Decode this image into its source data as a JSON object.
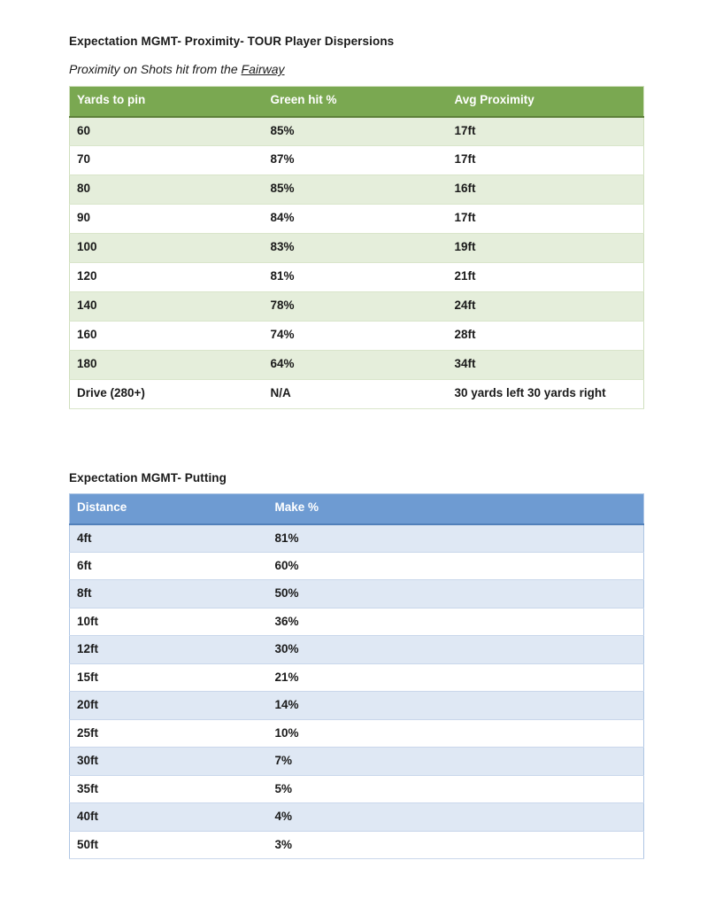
{
  "accent_colors": {
    "proximity_header_bg": "#7aa851",
    "proximity_band_bg": "#e5eedb",
    "putting_header_bg": "#6e9bd2",
    "putting_band_bg": "#dfe8f4"
  },
  "section1": {
    "title": "Expectation MGMT- Proximity- TOUR Player Dispersions",
    "subtitle_prefix": "Proximity on Shots hit from the ",
    "subtitle_underlined": "Fairway",
    "table": {
      "type": "table",
      "columns": [
        "Yards to pin",
        "Green hit %",
        "Avg Proximity"
      ],
      "rows": [
        [
          "60",
          "85%",
          "17ft"
        ],
        [
          "70",
          "87%",
          "17ft"
        ],
        [
          "80",
          "85%",
          "16ft"
        ],
        [
          "90",
          "84%",
          "17ft"
        ],
        [
          "100",
          "83%",
          "19ft"
        ],
        [
          "120",
          "81%",
          "21ft"
        ],
        [
          "140",
          "78%",
          "24ft"
        ],
        [
          "160",
          "74%",
          "28ft"
        ],
        [
          "180",
          "64%",
          "34ft"
        ],
        [
          "Drive (280+)",
          "N/A",
          "30 yards left 30 yards right"
        ]
      ]
    }
  },
  "section2": {
    "title": "Expectation MGMT- Putting",
    "table": {
      "type": "table",
      "columns": [
        "Distance",
        "Make %"
      ],
      "rows": [
        [
          "4ft",
          "81%"
        ],
        [
          "6ft",
          "60%"
        ],
        [
          "8ft",
          "50%"
        ],
        [
          "10ft",
          "36%"
        ],
        [
          "12ft",
          "30%"
        ],
        [
          "15ft",
          "21%"
        ],
        [
          "20ft",
          "14%"
        ],
        [
          "25ft",
          "10%"
        ],
        [
          "30ft",
          "7%"
        ],
        [
          "35ft",
          "5%"
        ],
        [
          "40ft",
          "4%"
        ],
        [
          "50ft",
          "3%"
        ]
      ]
    }
  }
}
